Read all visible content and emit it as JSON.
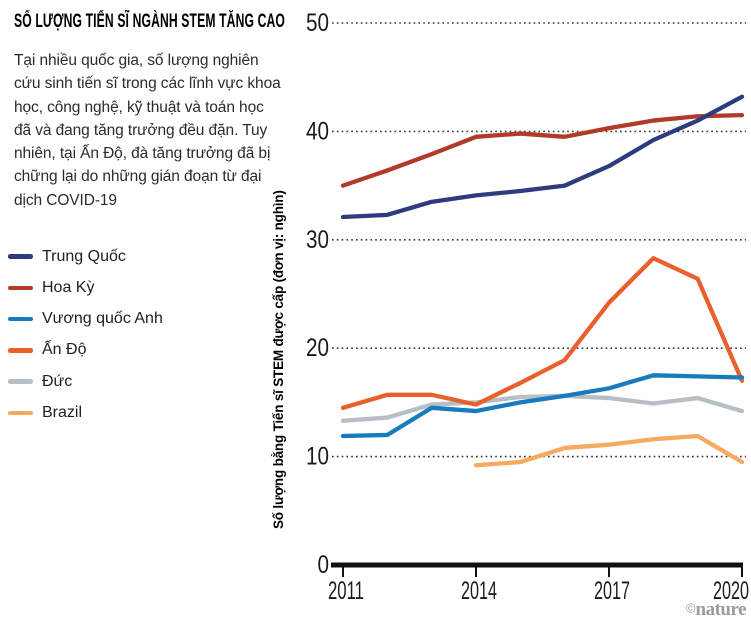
{
  "header": {
    "title": "SỐ LƯỢNG TIẾN SĨ NGÀNH STEM TĂNG CAO",
    "description": "Tại nhiều quốc gia, số lượng nghiên cứu sinh tiến sĩ trong các lĩnh vực khoa học, công nghệ, kỹ thuật và toán học đã và đang tăng trưởng đều đặn. Tuy nhiên, tại Ấn Độ, đà tăng trưởng đã bị chững lại do những gián đoạn từ đại dịch COVID-19"
  },
  "legend": {
    "items": [
      {
        "label": "Trung Quốc",
        "color": "#2e3c7e"
      },
      {
        "label": "Hoa Kỳ",
        "color": "#b23a28"
      },
      {
        "label": "Vương quốc Anh",
        "color": "#177bbd"
      },
      {
        "label": "Ấn Độ",
        "color": "#e8602c"
      },
      {
        "label": "Đức",
        "color": "#b7bec6"
      },
      {
        "label": "Brazil",
        "color": "#f7a95f"
      }
    ]
  },
  "chart_data": {
    "type": "line",
    "title": "SỐ LƯỢNG TIẾN SĨ NGÀNH STEM TĂNG CAO",
    "ylabel": "Số lượng bằng Tiến sĩ STEM được cấp (đơn vị: nghìn)",
    "xlabel": "",
    "x": [
      2011,
      2012,
      2013,
      2014,
      2015,
      2016,
      2017,
      2018,
      2019,
      2020
    ],
    "x_tick_labels": [
      "2011",
      "2014",
      "2017",
      "2020"
    ],
    "y_ticks": [
      0,
      10,
      20,
      30,
      40,
      50
    ],
    "ylim": [
      0,
      50
    ],
    "xlim": [
      2011,
      2020
    ],
    "grid": "horizontal-dotted",
    "legend_position": "left",
    "unit": "thousand doctorates awarded",
    "series": [
      {
        "name": "Đức",
        "color": "#b7bec6",
        "values": [
          13.3,
          13.6,
          14.8,
          15.0,
          15.5,
          15.6,
          15.4,
          14.9,
          15.4,
          14.2
        ]
      },
      {
        "name": "Brazil",
        "color": "#f7a95f",
        "values": [
          null,
          null,
          null,
          9.2,
          9.5,
          10.8,
          11.1,
          11.6,
          11.9,
          9.5
        ]
      },
      {
        "name": "Ấn Độ",
        "color": "#e8602c",
        "values": [
          14.5,
          15.7,
          15.7,
          14.8,
          16.8,
          18.9,
          24.2,
          28.3,
          26.4,
          17.0
        ]
      },
      {
        "name": "Vương quốc Anh",
        "color": "#177bbd",
        "values": [
          11.9,
          12.0,
          14.5,
          14.2,
          15.0,
          15.6,
          16.3,
          17.5,
          17.4,
          17.3
        ]
      },
      {
        "name": "Hoa Kỳ",
        "color": "#b23a28",
        "values": [
          35.0,
          36.4,
          37.9,
          39.5,
          39.8,
          39.5,
          40.3,
          41.0,
          41.4,
          41.5
        ]
      },
      {
        "name": "Trung Quốc",
        "color": "#2e3c7e",
        "values": [
          32.1,
          32.3,
          33.5,
          34.1,
          34.5,
          35.0,
          36.8,
          39.2,
          41.0,
          43.2
        ]
      }
    ]
  },
  "watermark": {
    "symbol": "©",
    "text": "nature"
  }
}
